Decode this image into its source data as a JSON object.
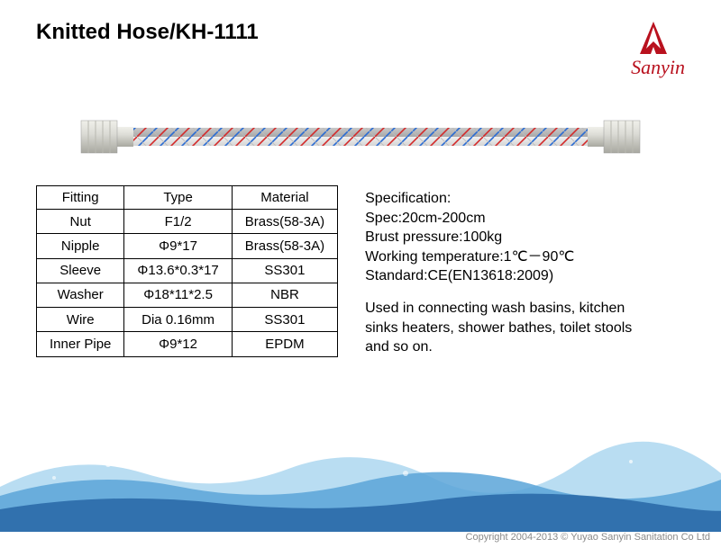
{
  "title": "Knitted Hose/KH-1111",
  "logo": {
    "text": "Sanyin",
    "color": "#b9111e"
  },
  "hose": {
    "body_color": "#cfcfcf",
    "stripe_red": "#d42a2a",
    "stripe_blue": "#2a6cd4",
    "nut_color": "#dcdcd6",
    "nut_shadow": "#a8a8a0"
  },
  "table": {
    "columns": [
      "Fitting",
      "Type",
      "Material"
    ],
    "rows": [
      [
        "Nut",
        "F1/2",
        "Brass(58-3A)"
      ],
      [
        "Nipple",
        "Φ9*17",
        "Brass(58-3A)"
      ],
      [
        "Sleeve",
        "Φ13.6*0.3*17",
        "SS301"
      ],
      [
        "Washer",
        "Φ18*11*2.5",
        "NBR"
      ],
      [
        "Wire",
        "Dia 0.16mm",
        "SS301"
      ],
      [
        "Inner Pipe",
        "Φ9*12",
        "EPDM"
      ]
    ],
    "border_color": "#000000",
    "cell_fontsize": 15
  },
  "specification": {
    "heading": "Specification:",
    "lines": [
      "Spec:20cm-200cm",
      "Brust pressure:100kg",
      "Working temperature:1℃－90℃",
      "Standard:CE(EN13618:2009)"
    ]
  },
  "usage": "Used in connecting wash basins, kitchen sinks heaters, shower bathes, toilet stools and so on.",
  "water": {
    "dark": "#2b6aa8",
    "mid": "#5aa5d8",
    "light": "#a8d4ef",
    "foam": "#ffffff"
  },
  "copyright": "Copyright 2004-2013 © Yuyao Sanyin Sanitation Co Ltd"
}
